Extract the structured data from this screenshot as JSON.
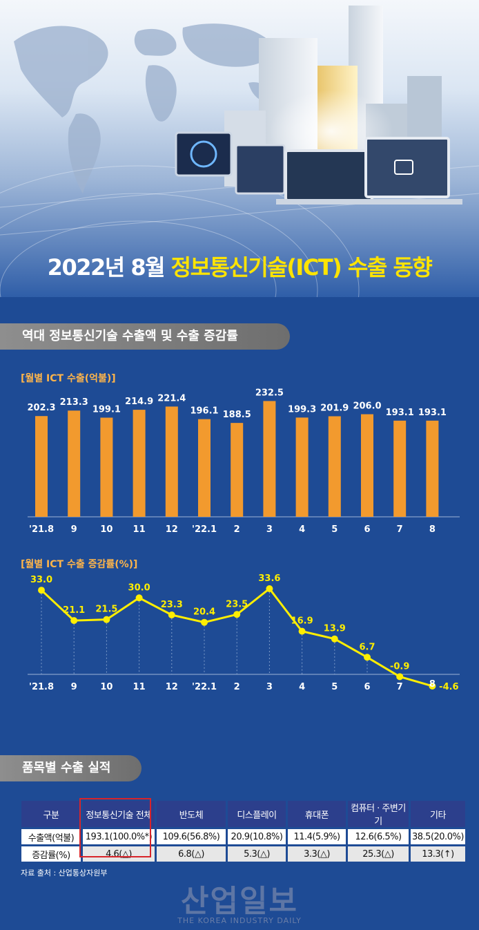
{
  "title": {
    "year_month": "2022년 8월",
    "subject": "정보통신기술(ICT) 수출 동향"
  },
  "section1": {
    "heading": "역대 정보통신기술 수출액 및 수출 증감률"
  },
  "section2": {
    "heading": "품목별 수출 실적"
  },
  "chart_data": [
    {
      "type": "bar",
      "title": "[월별 ICT 수출(억불)]",
      "categories": [
        "'21.8",
        "9",
        "10",
        "11",
        "12",
        "'22.1",
        "2",
        "3",
        "4",
        "5",
        "6",
        "7",
        "8"
      ],
      "values": [
        202.3,
        213.3,
        199.1,
        214.9,
        221.4,
        196.1,
        188.5,
        232.5,
        199.3,
        201.9,
        206.0,
        193.1,
        193.1
      ],
      "value_labels": [
        "202.3",
        "213.3",
        "199.1",
        "214.9",
        "221.4",
        "196.1",
        "188.5",
        "232.5",
        "199.3",
        "201.9",
        "206.0",
        "193.1",
        "193.1"
      ],
      "ylim": [
        0,
        240
      ],
      "color": "#f29a2e"
    },
    {
      "type": "line",
      "title": "[월별 ICT 수출 증감률(%)]",
      "categories": [
        "'21.8",
        "9",
        "10",
        "11",
        "12",
        "'22.1",
        "2",
        "3",
        "4",
        "5",
        "6",
        "7",
        "8"
      ],
      "values": [
        33.0,
        21.1,
        21.5,
        30.0,
        23.3,
        20.4,
        23.5,
        33.6,
        16.9,
        13.9,
        6.7,
        -0.9,
        -4.6
      ],
      "value_labels": [
        "33.0",
        "21.1",
        "21.5",
        "30.0",
        "23.3",
        "20.4",
        "23.5",
        "33.6",
        "16.9",
        "13.9",
        "6.7",
        "-0.9",
        "-4.6"
      ],
      "ylim": [
        -5,
        35
      ],
      "color": "#ffee00"
    }
  ],
  "table": {
    "headers": [
      "구분",
      "정보통신기술 전체",
      "반도체",
      "디스플레이",
      "휴대폰",
      "컴퓨터 · 주변기기",
      "기타"
    ],
    "rows": [
      [
        "수출액(억불)",
        "193.1(100.0%*)",
        "109.6(56.8%)",
        "20.9(10.8%)",
        "11.4(5.9%)",
        "12.6(6.5%)",
        "38.5(20.0%)"
      ],
      [
        "증감률(%)",
        "4.6(△)",
        "6.8(△)",
        "5.3(△)",
        "3.3(△)",
        "25.3(△)",
        "13.3(↑)"
      ]
    ]
  },
  "source": "자료 출처 : 산업통상자원부",
  "logo": {
    "korean": "산업일보",
    "english": "THE KOREA INDUSTRY DAILY"
  },
  "colors": {
    "bar": "#f29a2e",
    "line": "#ffee00",
    "background": "#1e4b95",
    "highlight": "#d8242a"
  }
}
